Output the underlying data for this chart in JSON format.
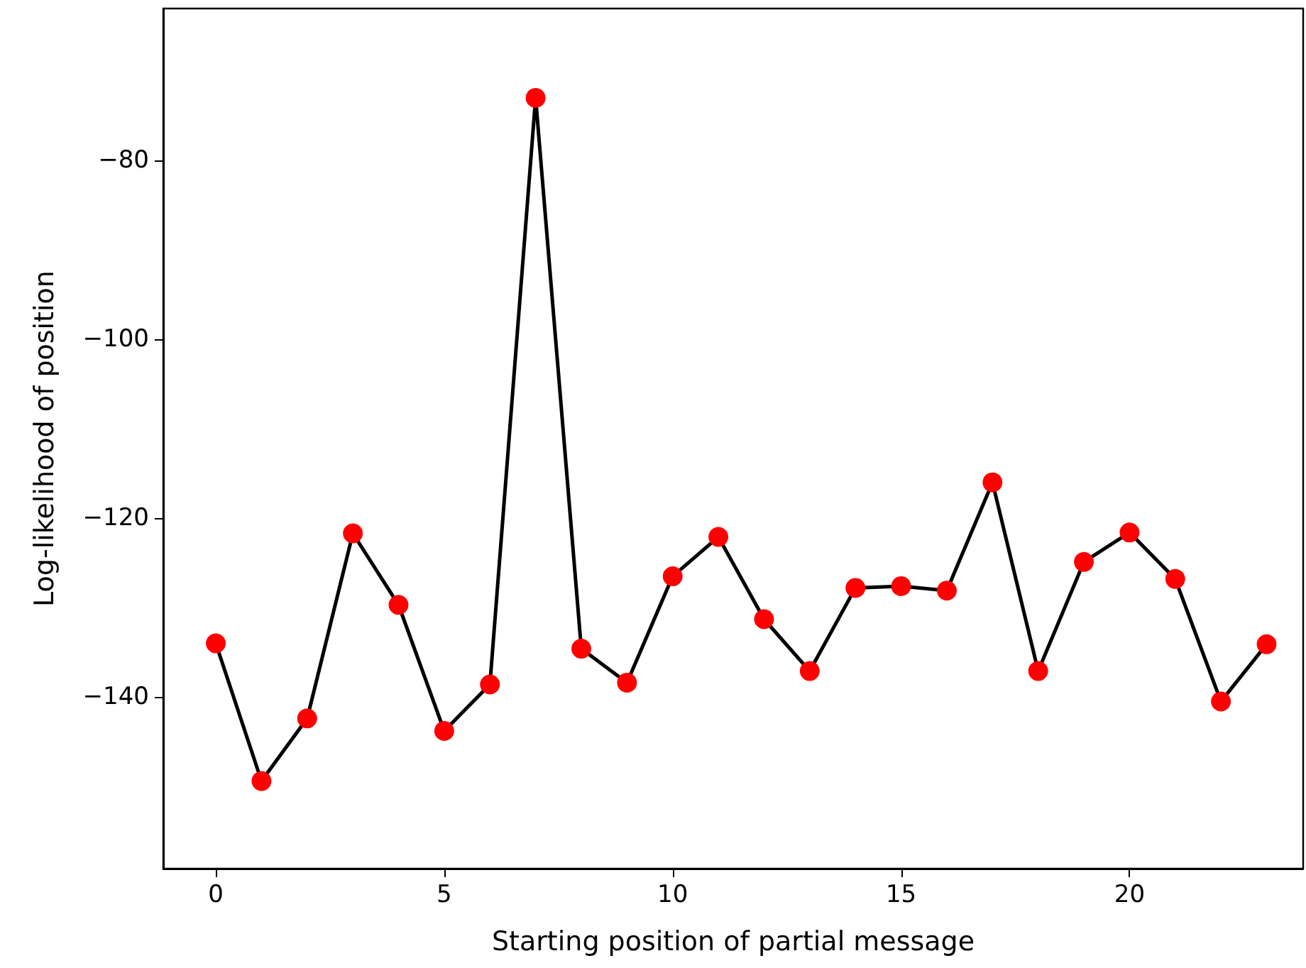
{
  "chart_data": {
    "type": "line",
    "xlabel": "Starting position of partial message",
    "ylabel": "Log-likelihood of position",
    "x": [
      0,
      1,
      2,
      3,
      4,
      5,
      6,
      7,
      8,
      9,
      10,
      11,
      12,
      13,
      14,
      15,
      16,
      17,
      18,
      19,
      20,
      21,
      22,
      23
    ],
    "series": [
      {
        "color": "#000000",
        "colors": [
          "#ff0000",
          "#ff0000",
          "#ff0000",
          "#ff0000",
          "#ff0000",
          "#ff0000",
          "#ff0000",
          "#ff0000",
          "#ff0000",
          "#ff0000",
          "#ff0000",
          "#ff0000",
          "#ff0000",
          "#ff0000",
          "#ff0000",
          "#ff0000",
          "#ff0000",
          "#ff0000",
          "#ff0000",
          "#ff0000",
          "#ff0000",
          "#ff0000",
          "#ff0000",
          "#ff0000"
        ],
        "values": [
          -134.0,
          -149.4,
          -142.4,
          -121.7,
          -129.7,
          -143.8,
          -138.6,
          -73.0,
          -134.6,
          -138.4,
          -126.5,
          -122.1,
          -131.3,
          -137.1,
          -127.8,
          -127.6,
          -128.1,
          -116.0,
          -137.1,
          -124.9,
          -121.6,
          -126.8,
          -140.5,
          -134.1
        ]
      }
    ],
    "xlim": [
      -1.15,
      23.8
    ],
    "ylim": [
      -159.2,
      -63.0
    ],
    "xticks": [
      0,
      5,
      10,
      15,
      20
    ],
    "yticks": [
      -140,
      -120,
      -100,
      -80
    ],
    "marker": "circle",
    "line_style": "solid",
    "grid": false
  }
}
